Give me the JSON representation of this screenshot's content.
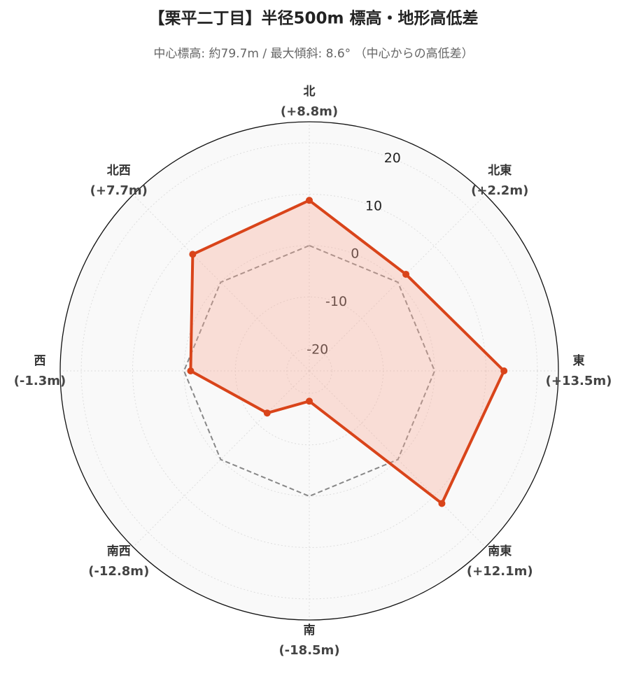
{
  "chart_data": {
    "type": "radar",
    "title": "【栗平二丁目】半径500m 標高・地形高低差",
    "subtitle": "中心標高: 約79.7m / 最大傾斜: 8.6° （中心からの高低差）",
    "categories": [
      "北",
      "北東",
      "東",
      "南東",
      "南",
      "南西",
      "西",
      "北西"
    ],
    "values": [
      8.8,
      2.2,
      13.5,
      12.1,
      -18.5,
      -12.8,
      -1.3,
      7.7
    ],
    "value_labels": [
      "(+8.8m)",
      "(+2.2m)",
      "(+13.5m)",
      "(+12.1m)",
      "(-18.5m)",
      "(-12.8m)",
      "(-1.3m)",
      "(+7.7m)"
    ],
    "color": "#d9441a",
    "reference_value": 0,
    "ylim": [
      -24.4,
      24.1
    ],
    "yticks": [
      -20,
      -10,
      0,
      10,
      20
    ],
    "grid": true
  }
}
